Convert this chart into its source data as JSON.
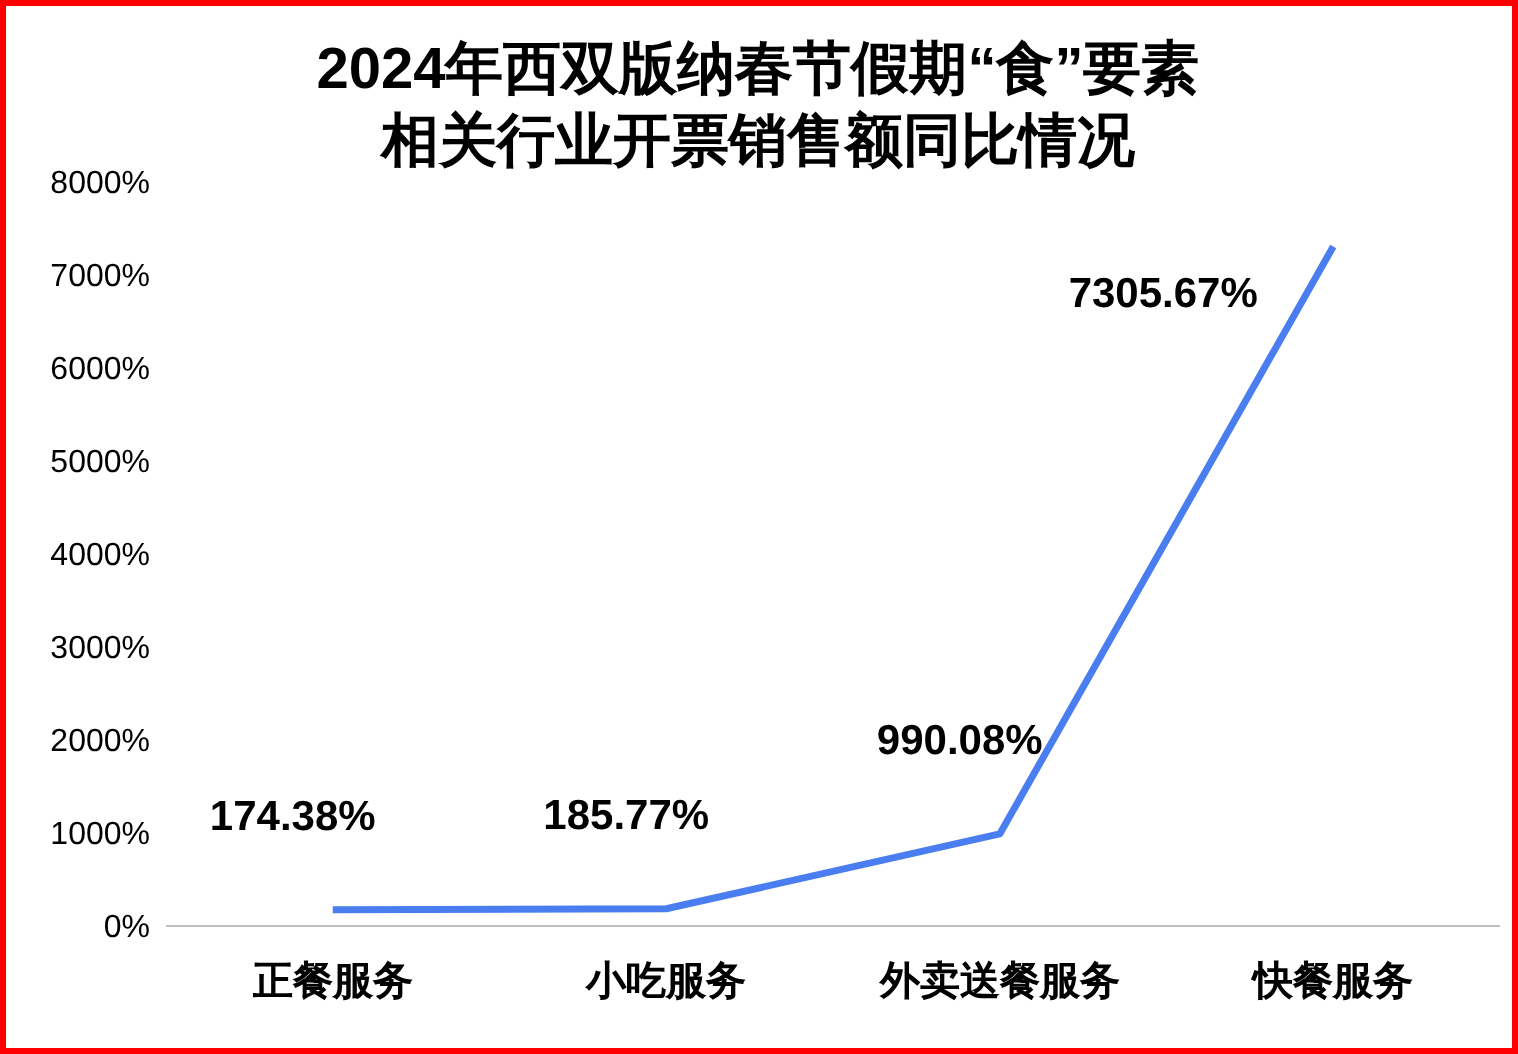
{
  "chart_data": {
    "type": "line",
    "title": "2024年西双版纳春节假期“食”要素相关行业开票销售额同比情况",
    "categories": [
      "正餐服务",
      "小吃服务",
      "外卖送餐服务",
      "快餐服务"
    ],
    "series": [
      {
        "color": "#4a7ef0",
        "values": [
          174.38,
          185.77,
          990.08,
          7305.67
        ],
        "value_labels": [
          "174.38%",
          "185.77%",
          "990.08%",
          "7305.67%"
        ]
      }
    ],
    "ylim": [
      0,
      8000
    ],
    "yticks": [
      {
        "value": 0,
        "label": "0%"
      },
      {
        "value": 1000,
        "label": "1000%"
      },
      {
        "value": 2000,
        "label": "2000%"
      },
      {
        "value": 3000,
        "label": "3000%"
      },
      {
        "value": 4000,
        "label": "4000%"
      },
      {
        "value": 5000,
        "label": "5000%"
      },
      {
        "value": 6000,
        "label": "6000%"
      },
      {
        "value": 7000,
        "label": "7000%"
      },
      {
        "value": 8000,
        "label": "8000%"
      }
    ],
    "grid": false,
    "legend": false,
    "marker": "none",
    "line_style": "solid"
  }
}
